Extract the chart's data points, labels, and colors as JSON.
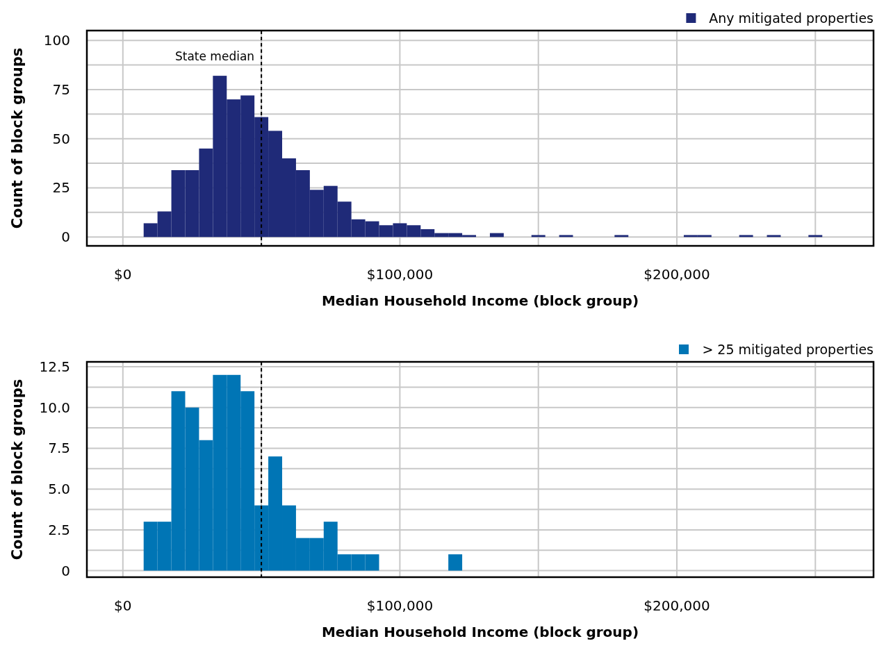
{
  "chart_data": [
    {
      "type": "histogram",
      "xlabel": "Median Household Income (block group)",
      "ylabel": "Count of block groups",
      "legend": "top right",
      "grid": true,
      "bins": [
        7500,
        12500,
        17500,
        22500,
        27500,
        32500,
        37500,
        42500,
        47500,
        52500,
        57500,
        62500,
        67500,
        72500,
        77500,
        82500,
        87500,
        92500,
        97500,
        102500,
        107500,
        112500,
        117500,
        122500,
        127500,
        132500,
        137500,
        142500,
        147500,
        152500,
        157500,
        162500,
        167500,
        172500,
        177500,
        182500,
        187500,
        192500,
        197500,
        202500,
        207500,
        212500,
        217500,
        222500,
        227500,
        232500,
        237500,
        242500,
        247500,
        252500
      ],
      "series": [
        {
          "name": "Any mitigated properties",
          "color": "#1f2a78",
          "values": [
            7,
            13,
            34,
            34,
            45,
            82,
            70,
            72,
            61,
            54,
            40,
            34,
            24,
            26,
            18,
            9,
            8,
            6,
            7,
            6,
            4,
            2,
            2,
            1,
            0,
            2,
            0,
            0,
            1,
            0,
            1,
            0,
            0,
            0,
            1,
            0,
            0,
            0,
            0,
            1,
            1,
            0,
            0,
            1,
            0,
            1,
            0,
            0,
            1
          ]
        }
      ],
      "xlim": [
        -13000,
        271000
      ],
      "xticks": [
        {
          "value": 0,
          "label": "$0"
        },
        {
          "value": 50000,
          "label": null
        },
        {
          "value": 100000,
          "label": "$100,000"
        },
        {
          "value": 150000,
          "label": null
        },
        {
          "value": 200000,
          "label": "$200,000"
        },
        {
          "value": 250000,
          "label": null
        }
      ],
      "ylim": [
        -4.5,
        105
      ],
      "yticks": [
        0,
        {
          "value": 12.5,
          "label": null
        },
        25,
        {
          "value": 37.5,
          "label": null
        },
        50,
        {
          "value": 62.5,
          "label": null
        },
        75,
        {
          "value": 87.5,
          "label": null
        },
        100
      ],
      "ref_lines": [
        {
          "axis": "x",
          "value": 50000,
          "label": "State median",
          "line_style": "dashed",
          "color": "#000000"
        }
      ]
    },
    {
      "type": "histogram",
      "xlabel": "Median Household Income (block group)",
      "ylabel": "Count of block groups",
      "legend": "top right",
      "grid": true,
      "bins": [
        7500,
        12500,
        17500,
        22500,
        27500,
        32500,
        37500,
        42500,
        47500,
        52500,
        57500,
        62500,
        67500,
        72500,
        77500,
        82500,
        87500,
        92500,
        97500,
        102500,
        107500,
        112500,
        117500,
        122500
      ],
      "series": [
        {
          "name": "> 25 mitigated properties",
          "color": "#0075b5",
          "values": [
            3,
            3,
            11,
            10,
            8,
            12,
            12,
            11,
            4,
            7,
            4,
            2,
            2,
            3,
            1,
            1,
            1,
            0,
            0,
            0,
            0,
            0,
            1
          ]
        }
      ],
      "xlim": [
        -13000,
        271000
      ],
      "xticks": [
        {
          "value": 0,
          "label": "$0"
        },
        {
          "value": 50000,
          "label": null
        },
        {
          "value": 100000,
          "label": "$100,000"
        },
        {
          "value": 150000,
          "label": null
        },
        {
          "value": 200000,
          "label": "$200,000"
        },
        {
          "value": 250000,
          "label": null
        }
      ],
      "ylim": [
        -0.4,
        12.8
      ],
      "yticks": [
        0,
        {
          "value": 1.25,
          "label": null
        },
        {
          "value": 2.5,
          "label": "2.5"
        },
        {
          "value": 3.75,
          "label": null
        },
        {
          "value": 5,
          "label": "5.0"
        },
        {
          "value": 6.25,
          "label": null
        },
        {
          "value": 7.5,
          "label": "7.5"
        },
        {
          "value": 8.75,
          "label": null
        },
        {
          "value": 10,
          "label": "10.0"
        },
        {
          "value": 11.25,
          "label": null
        },
        {
          "value": 12.5,
          "label": "12.5"
        }
      ],
      "ref_lines": [
        {
          "axis": "x",
          "value": 50000,
          "line_style": "dashed",
          "color": "#000000"
        }
      ]
    }
  ]
}
